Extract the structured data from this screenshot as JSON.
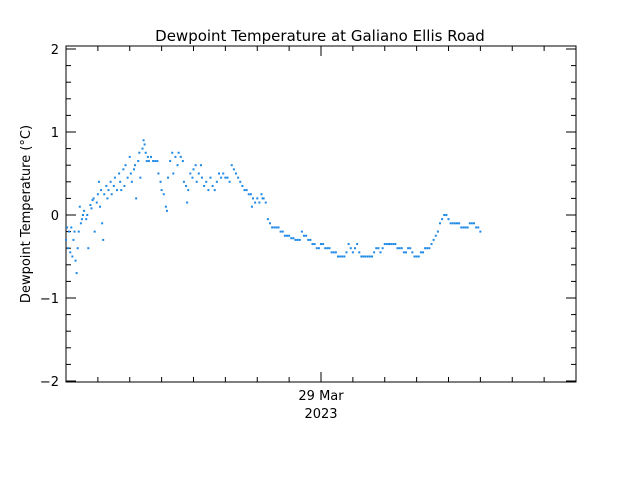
{
  "chart_data": {
    "type": "scatter",
    "title": "Dewpoint Temperature at Galiano Ellis Road",
    "xlabel": "",
    "ylabel": "Dewpoint Temperature (°C)",
    "ylim": [
      -2,
      2
    ],
    "yticks": [
      "2",
      "1",
      "0",
      "−1",
      "−2"
    ],
    "ytick_values": [
      2,
      1,
      0,
      -1,
      -2
    ],
    "xlim": [
      0,
      48
    ],
    "xtick": {
      "position_hours": 24,
      "label_line1": "29 Mar",
      "label_line2": "2023"
    },
    "grid": false,
    "series_color": "#1e88e5",
    "series": [
      {
        "name": "",
        "points": [
          [
            0.0,
            -0.3
          ],
          [
            0.1,
            -0.15
          ],
          [
            0.2,
            -0.4
          ],
          [
            0.3,
            -0.2
          ],
          [
            0.4,
            -0.45
          ],
          [
            0.5,
            -0.15
          ],
          [
            0.6,
            -0.5
          ],
          [
            0.7,
            -0.3
          ],
          [
            0.8,
            -0.2
          ],
          [
            0.9,
            -0.55
          ],
          [
            1.0,
            -0.7
          ],
          [
            1.1,
            -0.4
          ],
          [
            1.2,
            -0.2
          ],
          [
            1.3,
            0.1
          ],
          [
            1.4,
            -0.1
          ],
          [
            1.5,
            -0.05
          ],
          [
            1.6,
            0.0
          ],
          [
            1.7,
            0.05
          ],
          [
            1.9,
            -0.05
          ],
          [
            2.0,
            0.0
          ],
          [
            2.1,
            -0.4
          ],
          [
            2.3,
            0.12
          ],
          [
            2.4,
            0.08
          ],
          [
            2.5,
            0.18
          ],
          [
            2.6,
            0.2
          ],
          [
            2.7,
            -0.2
          ],
          [
            2.9,
            0.15
          ],
          [
            3.0,
            0.25
          ],
          [
            3.1,
            0.4
          ],
          [
            3.2,
            0.1
          ],
          [
            3.3,
            0.3
          ],
          [
            3.4,
            -0.1
          ],
          [
            3.5,
            -0.3
          ],
          [
            3.6,
            0.25
          ],
          [
            3.8,
            0.35
          ],
          [
            3.9,
            0.2
          ],
          [
            4.0,
            0.3
          ],
          [
            4.2,
            0.4
          ],
          [
            4.3,
            0.25
          ],
          [
            4.5,
            0.35
          ],
          [
            4.6,
            0.45
          ],
          [
            4.8,
            0.3
          ],
          [
            5.0,
            0.5
          ],
          [
            5.1,
            0.4
          ],
          [
            5.2,
            0.3
          ],
          [
            5.4,
            0.55
          ],
          [
            5.5,
            0.35
          ],
          [
            5.6,
            0.6
          ],
          [
            5.8,
            0.45
          ],
          [
            6.0,
            0.7
          ],
          [
            6.1,
            0.5
          ],
          [
            6.2,
            0.4
          ],
          [
            6.4,
            0.55
          ],
          [
            6.5,
            0.6
          ],
          [
            6.6,
            0.2
          ],
          [
            6.8,
            0.65
          ],
          [
            6.9,
            0.75
          ],
          [
            7.0,
            0.45
          ],
          [
            7.2,
            0.8
          ],
          [
            7.3,
            0.9
          ],
          [
            7.4,
            0.85
          ],
          [
            7.5,
            0.75
          ],
          [
            7.6,
            0.65
          ],
          [
            7.7,
            0.7
          ],
          [
            7.8,
            0.65
          ],
          [
            8.0,
            0.7
          ],
          [
            8.2,
            0.65
          ],
          [
            8.4,
            0.65
          ],
          [
            8.6,
            0.65
          ],
          [
            8.7,
            0.5
          ],
          [
            8.9,
            0.4
          ],
          [
            9.0,
            0.3
          ],
          [
            9.2,
            0.25
          ],
          [
            9.4,
            0.1
          ],
          [
            9.5,
            0.05
          ],
          [
            9.6,
            0.45
          ],
          [
            9.8,
            0.65
          ],
          [
            10.0,
            0.75
          ],
          [
            10.1,
            0.5
          ],
          [
            10.3,
            0.7
          ],
          [
            10.5,
            0.6
          ],
          [
            10.6,
            0.75
          ],
          [
            10.8,
            0.7
          ],
          [
            11.0,
            0.65
          ],
          [
            11.1,
            0.4
          ],
          [
            11.3,
            0.35
          ],
          [
            11.4,
            0.15
          ],
          [
            11.5,
            0.3
          ],
          [
            11.7,
            0.5
          ],
          [
            11.9,
            0.45
          ],
          [
            12.0,
            0.55
          ],
          [
            12.2,
            0.6
          ],
          [
            12.3,
            0.4
          ],
          [
            12.5,
            0.5
          ],
          [
            12.7,
            0.6
          ],
          [
            12.8,
            0.45
          ],
          [
            13.0,
            0.35
          ],
          [
            13.2,
            0.4
          ],
          [
            13.4,
            0.3
          ],
          [
            13.6,
            0.45
          ],
          [
            13.8,
            0.35
          ],
          [
            14.0,
            0.3
          ],
          [
            14.2,
            0.4
          ],
          [
            14.4,
            0.5
          ],
          [
            14.6,
            0.45
          ],
          [
            14.8,
            0.5
          ],
          [
            15.0,
            0.45
          ],
          [
            15.2,
            0.45
          ],
          [
            15.4,
            0.4
          ],
          [
            15.6,
            0.6
          ],
          [
            15.8,
            0.55
          ],
          [
            16.0,
            0.5
          ],
          [
            16.2,
            0.45
          ],
          [
            16.4,
            0.4
          ],
          [
            16.6,
            0.35
          ],
          [
            16.8,
            0.3
          ],
          [
            17.0,
            0.3
          ],
          [
            17.2,
            0.25
          ],
          [
            17.4,
            0.25
          ],
          [
            17.5,
            0.1
          ],
          [
            17.6,
            0.2
          ],
          [
            17.8,
            0.15
          ],
          [
            18.0,
            0.2
          ],
          [
            18.2,
            0.15
          ],
          [
            18.4,
            0.25
          ],
          [
            18.5,
            0.2
          ],
          [
            18.6,
            0.2
          ],
          [
            18.8,
            0.15
          ],
          [
            19.0,
            -0.05
          ],
          [
            19.2,
            -0.1
          ],
          [
            19.4,
            -0.15
          ],
          [
            19.6,
            -0.15
          ],
          [
            19.8,
            -0.15
          ],
          [
            20.0,
            -0.15
          ],
          [
            20.2,
            -0.2
          ],
          [
            20.4,
            -0.2
          ],
          [
            20.6,
            -0.25
          ],
          [
            20.8,
            -0.25
          ],
          [
            21.0,
            -0.25
          ],
          [
            21.2,
            -0.28
          ],
          [
            21.4,
            -0.28
          ],
          [
            21.6,
            -0.3
          ],
          [
            21.8,
            -0.3
          ],
          [
            22.0,
            -0.3
          ],
          [
            22.2,
            -0.2
          ],
          [
            22.4,
            -0.25
          ],
          [
            22.6,
            -0.25
          ],
          [
            22.8,
            -0.3
          ],
          [
            23.0,
            -0.3
          ],
          [
            23.2,
            -0.35
          ],
          [
            23.4,
            -0.35
          ],
          [
            23.6,
            -0.4
          ],
          [
            23.8,
            -0.4
          ],
          [
            24.0,
            -0.35
          ],
          [
            24.2,
            -0.35
          ],
          [
            24.4,
            -0.4
          ],
          [
            24.6,
            -0.4
          ],
          [
            24.8,
            -0.4
          ],
          [
            25.0,
            -0.45
          ],
          [
            25.2,
            -0.45
          ],
          [
            25.4,
            -0.45
          ],
          [
            25.6,
            -0.5
          ],
          [
            25.8,
            -0.5
          ],
          [
            26.0,
            -0.5
          ],
          [
            26.2,
            -0.5
          ],
          [
            26.4,
            -0.45
          ],
          [
            26.6,
            -0.35
          ],
          [
            26.8,
            -0.4
          ],
          [
            27.0,
            -0.45
          ],
          [
            27.2,
            -0.4
          ],
          [
            27.4,
            -0.35
          ],
          [
            27.6,
            -0.45
          ],
          [
            27.8,
            -0.5
          ],
          [
            28.0,
            -0.5
          ],
          [
            28.2,
            -0.5
          ],
          [
            28.4,
            -0.5
          ],
          [
            28.6,
            -0.5
          ],
          [
            28.8,
            -0.5
          ],
          [
            29.0,
            -0.45
          ],
          [
            29.2,
            -0.4
          ],
          [
            29.4,
            -0.4
          ],
          [
            29.6,
            -0.45
          ],
          [
            29.8,
            -0.4
          ],
          [
            30.0,
            -0.35
          ],
          [
            30.2,
            -0.35
          ],
          [
            30.4,
            -0.35
          ],
          [
            30.6,
            -0.35
          ],
          [
            30.8,
            -0.35
          ],
          [
            31.0,
            -0.35
          ],
          [
            31.2,
            -0.4
          ],
          [
            31.4,
            -0.4
          ],
          [
            31.6,
            -0.4
          ],
          [
            31.8,
            -0.45
          ],
          [
            32.0,
            -0.45
          ],
          [
            32.2,
            -0.4
          ],
          [
            32.4,
            -0.4
          ],
          [
            32.6,
            -0.45
          ],
          [
            32.8,
            -0.5
          ],
          [
            33.0,
            -0.5
          ],
          [
            33.2,
            -0.5
          ],
          [
            33.4,
            -0.45
          ],
          [
            33.6,
            -0.45
          ],
          [
            33.8,
            -0.4
          ],
          [
            34.0,
            -0.4
          ],
          [
            34.2,
            -0.4
          ],
          [
            34.4,
            -0.35
          ],
          [
            34.6,
            -0.3
          ],
          [
            34.8,
            -0.25
          ],
          [
            35.0,
            -0.2
          ],
          [
            35.2,
            -0.1
          ],
          [
            35.4,
            -0.05
          ],
          [
            35.6,
            0.0
          ],
          [
            35.8,
            0.0
          ],
          [
            36.0,
            -0.05
          ],
          [
            36.2,
            -0.1
          ],
          [
            36.4,
            -0.1
          ],
          [
            36.6,
            -0.1
          ],
          [
            36.8,
            -0.1
          ],
          [
            37.0,
            -0.1
          ],
          [
            37.2,
            -0.15
          ],
          [
            37.4,
            -0.15
          ],
          [
            37.6,
            -0.15
          ],
          [
            37.8,
            -0.15
          ],
          [
            38.0,
            -0.1
          ],
          [
            38.2,
            -0.1
          ],
          [
            38.4,
            -0.1
          ],
          [
            38.6,
            -0.15
          ],
          [
            38.8,
            -0.15
          ],
          [
            39.0,
            -0.2
          ]
        ]
      }
    ]
  }
}
